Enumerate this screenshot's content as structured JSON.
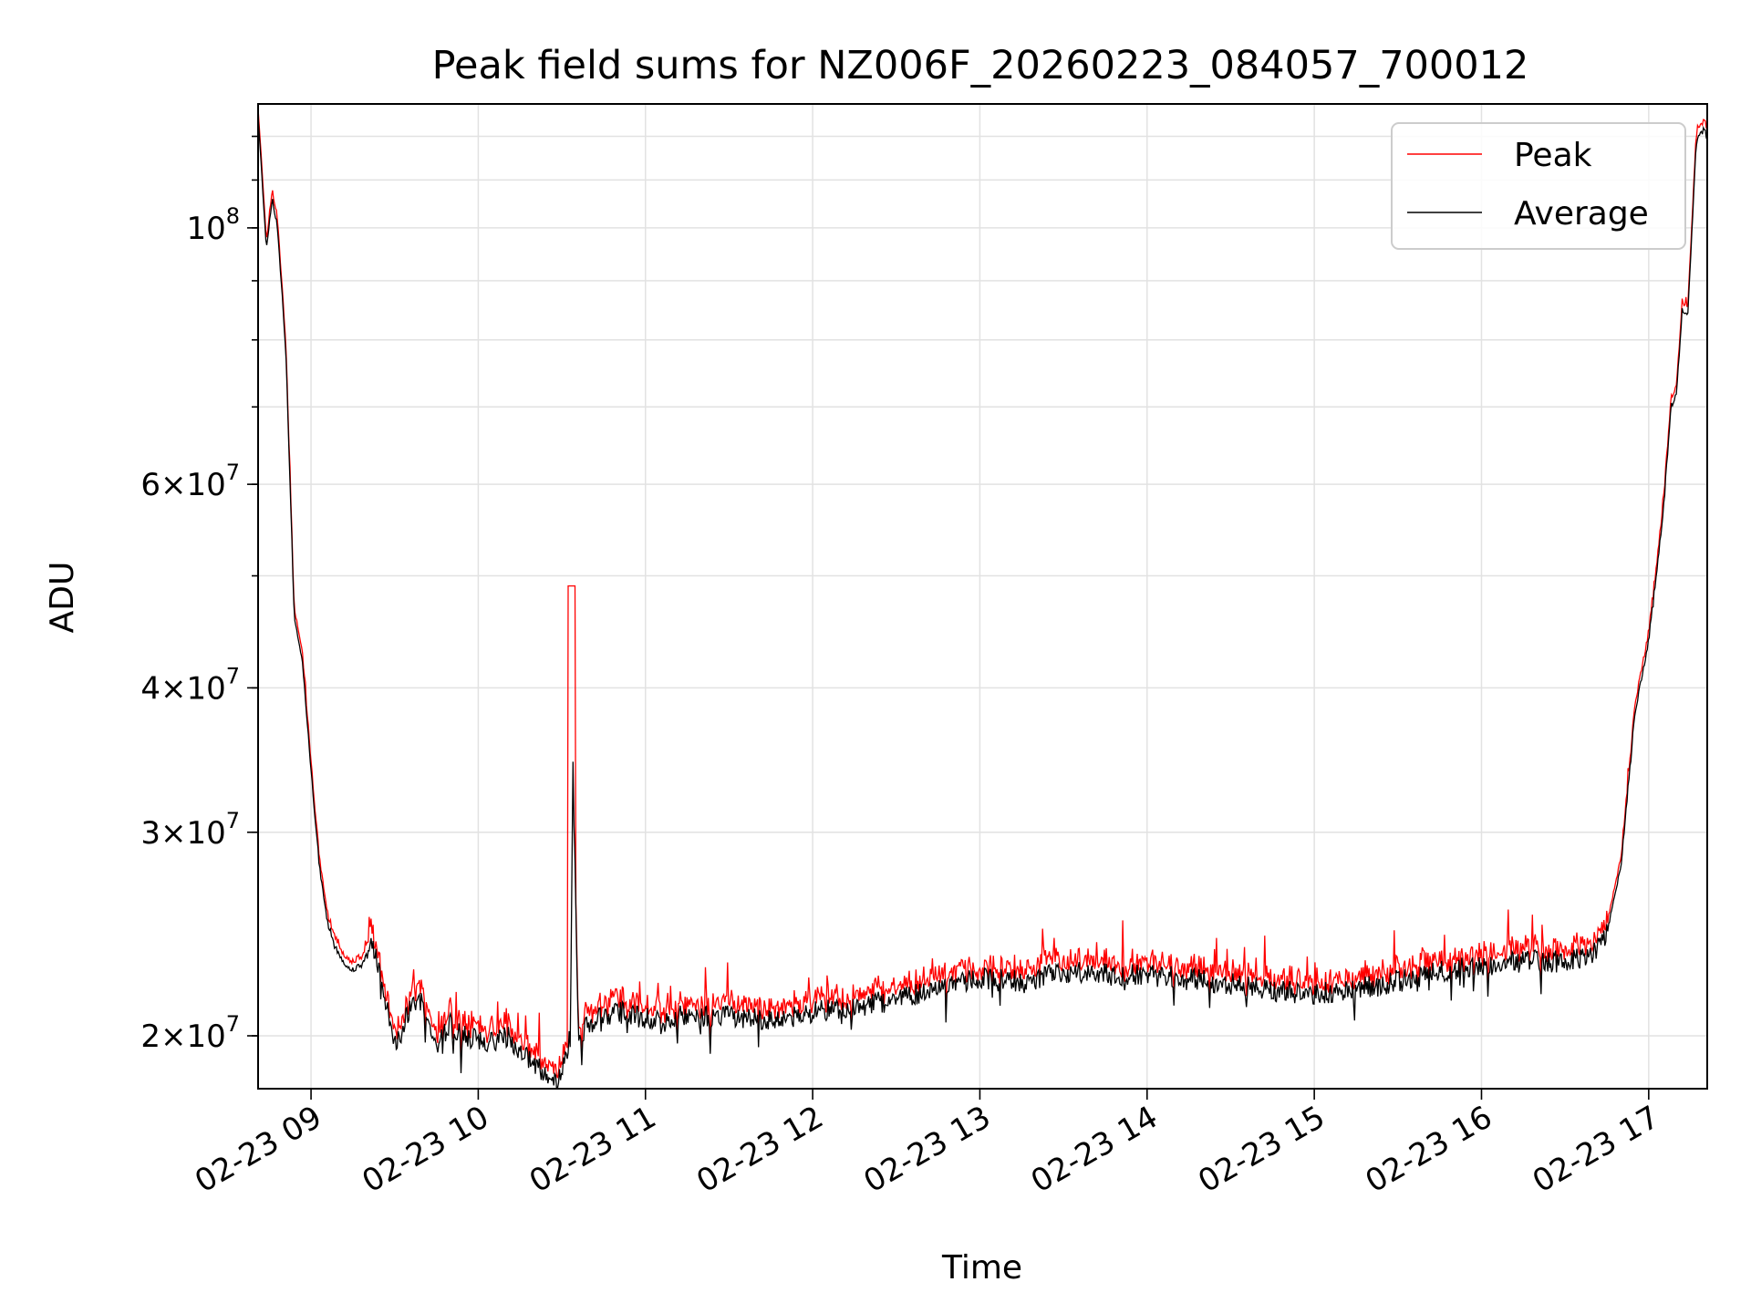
{
  "chart_data": {
    "type": "line",
    "title": "Peak field sums for NZ006F_20260223_084057_700012",
    "xlabel": "Time",
    "ylabel": "ADU",
    "date": "02-23",
    "xlim": [
      "08:41",
      "17:21"
    ],
    "ylim": [
      18000000,
      128000000
    ],
    "yscale": "log",
    "grid": true,
    "legend_position": "top-right",
    "x_ticks": [
      "02-23 09",
      "02-23 10",
      "02-23 11",
      "02-23 12",
      "02-23 13",
      "02-23 14",
      "02-23 15",
      "02-23 16",
      "02-23 17"
    ],
    "y_ticks": [
      {
        "value": 100000000,
        "mantissa": "",
        "exponent": "8",
        "base": "10"
      },
      {
        "value": 60000000,
        "mantissa": "6",
        "exponent": "7",
        "base": "10"
      },
      {
        "value": 40000000,
        "mantissa": "4",
        "exponent": "7",
        "base": "10"
      },
      {
        "value": 30000000,
        "mantissa": "3",
        "exponent": "7",
        "base": "10"
      },
      {
        "value": 20000000,
        "mantissa": "2",
        "exponent": "7",
        "base": "10"
      }
    ],
    "series": [
      {
        "name": "Peak",
        "color": "#ff0000"
      },
      {
        "name": "Average",
        "color": "#000000"
      }
    ],
    "average_trend": {
      "x": [
        "08:41",
        "08:44",
        "08:46",
        "08:48",
        "08:51",
        "08:54",
        "08:57",
        "09:00",
        "09:03",
        "09:06",
        "09:10",
        "09:14",
        "09:18",
        "09:22",
        "09:26",
        "09:30",
        "09:35",
        "09:40",
        "09:45",
        "09:50",
        "09:55",
        "10:00",
        "10:05",
        "10:10",
        "10:15",
        "10:20",
        "10:25",
        "10:29",
        "10:31",
        "10:33",
        "10:34",
        "10:36",
        "10:40",
        "10:45",
        "10:50",
        "11:00",
        "11:15",
        "11:30",
        "11:45",
        "12:00",
        "12:15",
        "12:30",
        "12:45",
        "13:00",
        "13:15",
        "13:30",
        "13:45",
        "14:00",
        "14:15",
        "14:30",
        "14:45",
        "15:00",
        "15:15",
        "15:30",
        "15:45",
        "16:00",
        "16:15",
        "16:30",
        "16:40",
        "16:45",
        "16:50",
        "16:55",
        "17:00",
        "17:05",
        "17:08",
        "17:10",
        "17:12",
        "17:14",
        "17:17",
        "17:19",
        "17:21"
      ],
      "y": [
        125000000,
        96000000,
        106000000,
        100000000,
        78000000,
        46000000,
        42000000,
        34000000,
        28000000,
        25000000,
        23500000,
        22800000,
        23000000,
        24000000,
        22000000,
        19500000,
        21000000,
        21500000,
        19500000,
        20500000,
        20000000,
        19800000,
        19700000,
        20000000,
        19500000,
        19000000,
        18500000,
        18300000,
        19000000,
        20000000,
        34000000,
        20000000,
        20500000,
        20800000,
        21000000,
        20700000,
        20800000,
        20800000,
        20600000,
        21000000,
        21200000,
        21500000,
        22000000,
        22400000,
        22300000,
        22700000,
        22600000,
        22600000,
        22400000,
        22200000,
        21900000,
        21700000,
        22000000,
        22300000,
        22700000,
        23000000,
        23200000,
        23200000,
        23500000,
        24500000,
        28000000,
        38000000,
        44000000,
        56000000,
        70000000,
        72000000,
        85000000,
        84000000,
        118000000,
        122000000,
        121000000
      ]
    }
  }
}
